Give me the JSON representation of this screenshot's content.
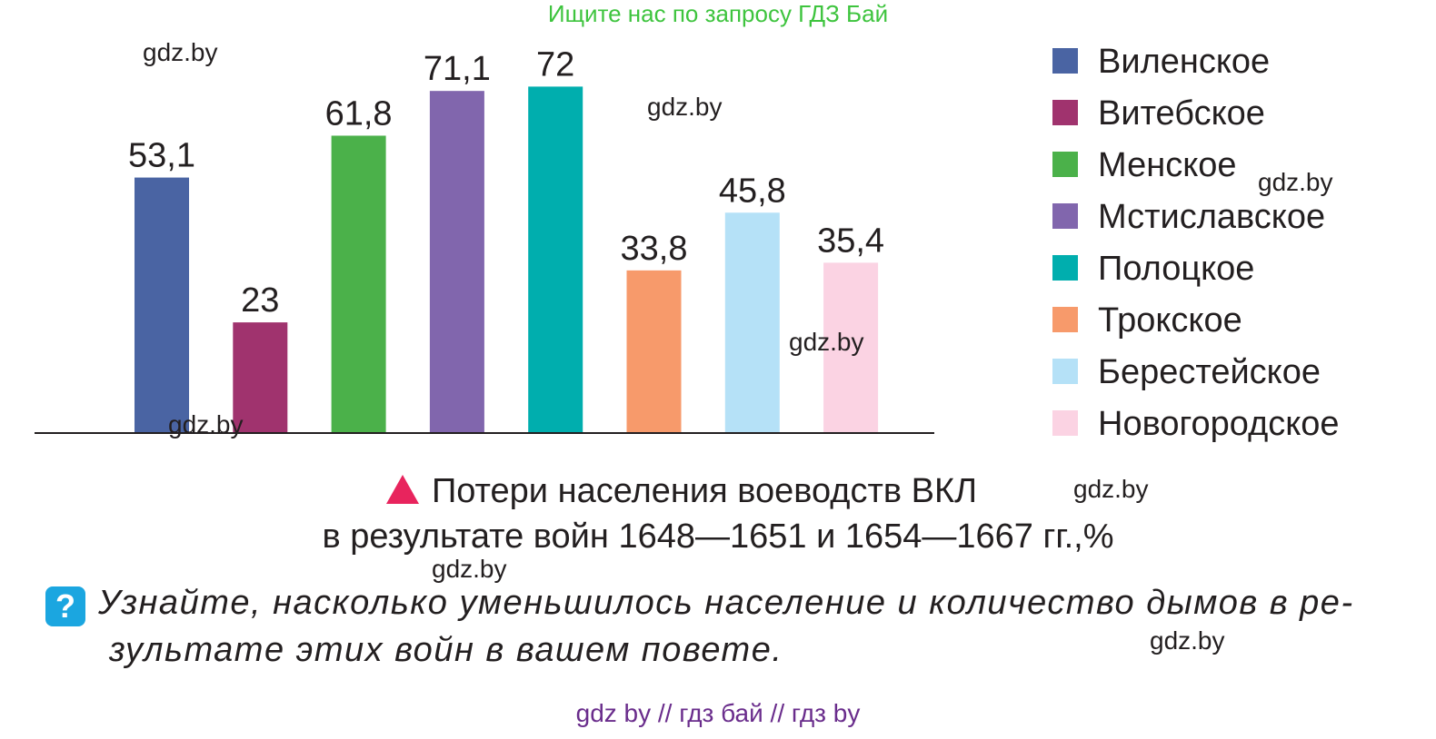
{
  "banner": "Ищите нас по запросу ГДЗ Бай",
  "watermark": "gdz.by",
  "chart_data": {
    "type": "bar",
    "categories": [
      "Виленское",
      "Витебское",
      "Менское",
      "Мстиславское",
      "Полоцкое",
      "Трокское",
      "Берестейское",
      "Новогородское"
    ],
    "values": [
      53.1,
      23,
      61.8,
      71.1,
      72,
      33.8,
      45.8,
      35.4
    ],
    "value_labels": [
      "53,1",
      "23",
      "61,8",
      "71,1",
      "72",
      "33,8",
      "45,8",
      "35,4"
    ],
    "colors": [
      "#4a64a3",
      "#a0336e",
      "#4bb14a",
      "#8166ad",
      "#00aeae",
      "#f79a6b",
      "#b5e1f7",
      "#fbd3e3"
    ],
    "legend_position": "right",
    "grid": false,
    "ylim": [
      0,
      72
    ],
    "title": "Потери населения воеводств ВКЛ",
    "subtitle": "в результате войн 1648—1651 и 1654—1667 гг.,%"
  },
  "question": {
    "icon": "question-icon",
    "mark": "?",
    "text": "Узнайте, насколько уменьшилось население и количество дымов в ре- зультате этих войн в вашем повете."
  },
  "footer": "gdz by  //  гдз бай  //  гдз by"
}
